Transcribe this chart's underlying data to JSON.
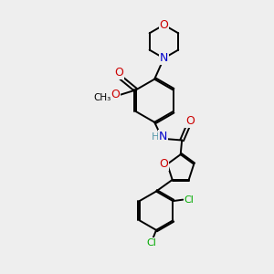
{
  "background_color": "#eeeeee",
  "atom_colors": {
    "C": "#000000",
    "N": "#0000cc",
    "O": "#cc0000",
    "Cl": "#00aa00",
    "H": "#5599aa"
  },
  "bond_color": "#000000",
  "fig_width": 3.0,
  "fig_height": 3.0,
  "dpi": 100
}
